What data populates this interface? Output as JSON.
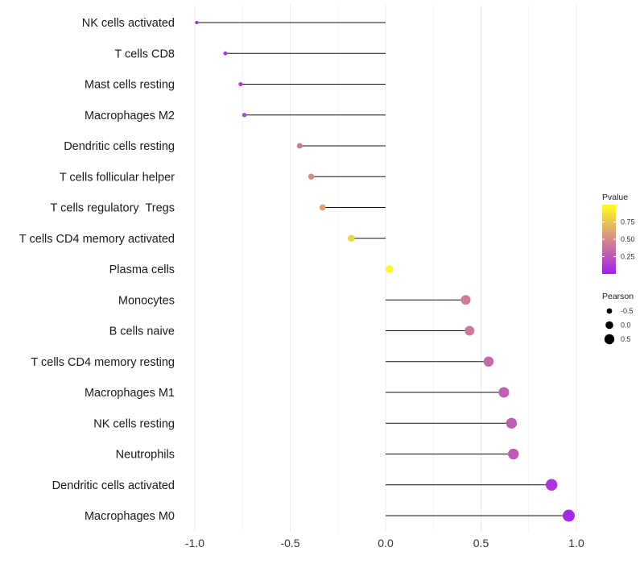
{
  "chart_data": {
    "type": "lollipop",
    "title": "",
    "xlabel": "",
    "ylabel": "",
    "xlim": [
      -1.0,
      1.0
    ],
    "xticks": [
      "-1.0",
      "-0.5",
      "0.0",
      "0.5",
      "1.0"
    ],
    "xtick_values": [
      -1.0,
      -0.5,
      0.0,
      0.5,
      1.0
    ],
    "grid": true,
    "points": [
      {
        "label": "NK cells activated",
        "pearson": -0.99,
        "pvalue": 0.04
      },
      {
        "label": "T cells CD8",
        "pearson": -0.84,
        "pvalue": 0.1
      },
      {
        "label": "Mast cells resting",
        "pearson": -0.76,
        "pvalue": 0.17
      },
      {
        "label": "Macrophages M2",
        "pearson": -0.74,
        "pvalue": 0.17
      },
      {
        "label": "Dendritic cells resting",
        "pearson": -0.45,
        "pvalue": 0.43
      },
      {
        "label": "T cells follicular helper",
        "pearson": -0.39,
        "pvalue": 0.5
      },
      {
        "label": "T cells regulatory  Tregs",
        "pearson": -0.33,
        "pvalue": 0.6
      },
      {
        "label": "T cells CD4 memory activated",
        "pearson": -0.18,
        "pvalue": 0.82
      },
      {
        "label": "Plasma cells",
        "pearson": 0.02,
        "pvalue": 0.98
      },
      {
        "label": "Monocytes",
        "pearson": 0.42,
        "pvalue": 0.44
      },
      {
        "label": "B cells naive",
        "pearson": 0.44,
        "pvalue": 0.42
      },
      {
        "label": "T cells CD4 memory resting",
        "pearson": 0.54,
        "pvalue": 0.35
      },
      {
        "label": "Macrophages M1",
        "pearson": 0.62,
        "pvalue": 0.3
      },
      {
        "label": "NK cells resting",
        "pearson": 0.66,
        "pvalue": 0.29
      },
      {
        "label": "Neutrophils",
        "pearson": 0.67,
        "pvalue": 0.28
      },
      {
        "label": "Dendritic cells activated",
        "pearson": 0.87,
        "pvalue": 0.1
      },
      {
        "label": "Macrophages M0",
        "pearson": 0.96,
        "pvalue": 0.04
      }
    ],
    "legend": {
      "position": "right",
      "color": {
        "title": "Pvalue",
        "ticks": [
          "0.75",
          "0.50",
          "0.25"
        ],
        "tick_values": [
          0.75,
          0.5,
          0.25
        ],
        "range": [
          0.0,
          1.0
        ],
        "low_color": "#a020f0",
        "mid_color": "#d58a8a",
        "high_color": "#ffff1a"
      },
      "size": {
        "title": "Pearson",
        "entries": [
          "-0.5",
          "0.0",
          "0.5"
        ],
        "entry_values": [
          -0.5,
          0.0,
          0.5
        ]
      }
    }
  }
}
